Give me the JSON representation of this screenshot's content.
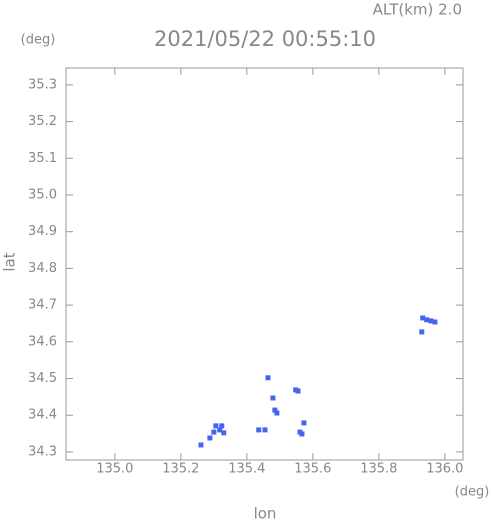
{
  "chart_data": {
    "type": "scatter",
    "title": "2021/05/22 00:55:10",
    "altitude_label": "ALT(km) 2.0",
    "y_unit": "(deg)",
    "x_unit": "(deg)",
    "xlabel": "lon",
    "ylabel": "lat",
    "color": "#4466ee",
    "x": [
      135.261,
      135.288,
      135.3,
      135.306,
      135.318,
      135.33,
      135.324,
      135.436,
      135.455,
      135.464,
      135.479,
      135.485,
      135.491,
      135.548,
      135.555,
      135.561,
      135.567,
      135.573,
      135.933,
      135.945,
      135.958,
      135.97,
      135.93
    ],
    "values": [
      34.319,
      34.338,
      34.354,
      34.371,
      34.36,
      34.352,
      34.371,
      34.36,
      34.36,
      34.502,
      34.447,
      34.414,
      34.406,
      34.469,
      34.466,
      34.354,
      34.349,
      34.379,
      34.665,
      34.66,
      34.657,
      34.654,
      34.627
    ],
    "xlim": [
      134.852,
      136.055
    ],
    "ylim": [
      34.278,
      35.346
    ],
    "xticks": [
      {
        "value": 135,
        "label": "135.0"
      },
      135.2,
      135.4,
      135.6,
      135.8,
      {
        "value": 136,
        "label": "136.0"
      }
    ],
    "yticks": [
      34.3,
      34.4,
      34.5,
      34.6,
      34.7,
      34.8,
      34.9,
      {
        "value": 35,
        "label": "35.0"
      },
      35.1,
      35.2,
      35.3
    ]
  }
}
